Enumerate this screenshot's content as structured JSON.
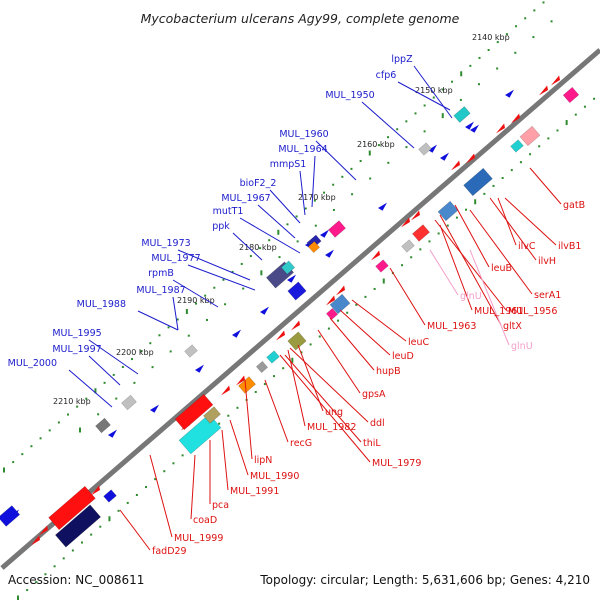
{
  "title": "Mycobacterium ulcerans Agy99, complete genome",
  "accession": "Accession: NC_008611",
  "topology": "Topology: circular; Length: 5,631,606 bp; Genes: 4,210",
  "colors": {
    "backbone": "#777777",
    "scale_dots": "#2e8b2e",
    "forward_label": "#1c1ccc",
    "reverse_label": "#dd1111",
    "rna_label": "#f39fc9"
  },
  "scale_labels": [
    "2140 kbp",
    "2150 kbp",
    "2160 kbp",
    "2170 kbp",
    "2180 kbp",
    "2190 kbp",
    "2200 kbp",
    "2210 kbp"
  ],
  "forward_gene_labels": [
    "lppZ",
    "cfp6",
    "MUL_1950",
    "MUL_1960",
    "MUL_1964",
    "mmpS1",
    "bioF2_2",
    "MUL_1967",
    "mutT1",
    "ppk",
    "MUL_1973",
    "MUL_1977",
    "rpmB",
    "MUL_1987",
    "MUL_1988",
    "MUL_1995",
    "MUL_1997",
    "MUL_2000"
  ],
  "reverse_gene_labels": [
    "gatB",
    "ilvC",
    "ilvB1",
    "ilvH",
    "leuB",
    "serA1",
    "glnU",
    "MUL_1961",
    "MUL_1956",
    "gltX",
    "glnU",
    "MUL_1963",
    "leuC",
    "leuD",
    "hupB",
    "gpsA",
    "ung",
    "ddl",
    "MUL_1982",
    "thiL",
    "MUL_1979",
    "recG",
    "lipN",
    "MUL_1990",
    "MUL_1991",
    "pca",
    "coaD",
    "MUL_1999",
    "fadD29"
  ]
}
